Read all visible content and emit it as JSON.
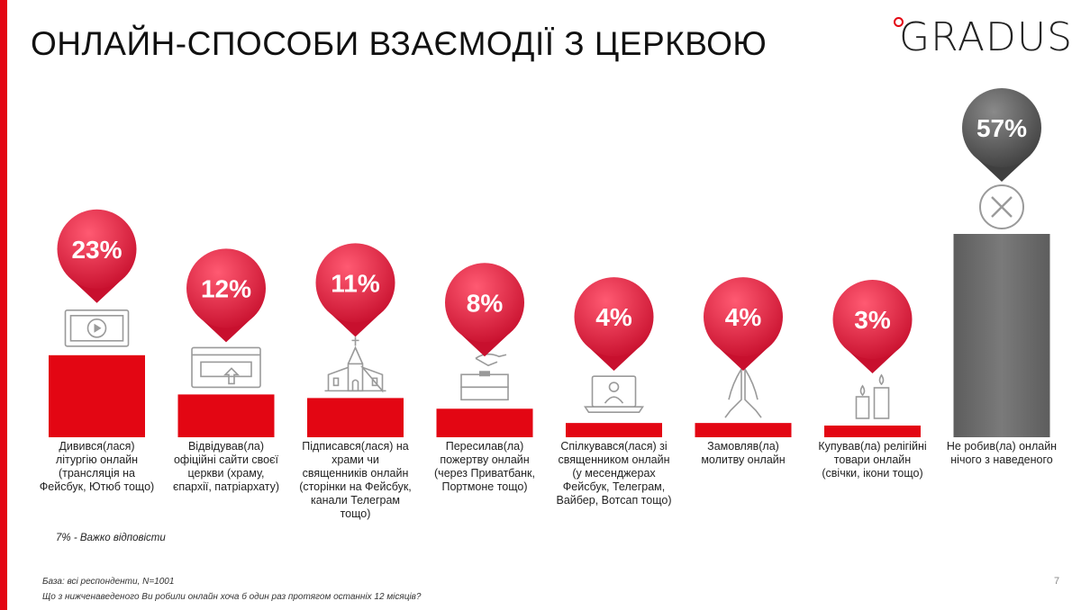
{
  "title": "ОНЛАЙН-СПОСОБИ ВЗАЄМОДІЇ З ЦЕРКВОЮ",
  "logo": "GRADUS",
  "note": "7% - Важко відповісти",
  "footer": {
    "base": "База: всі респонденти, N=1001",
    "question": "Що з нижченаведеного Ви робили онлайн хоча б один раз протягом останніх 12 місяців?"
  },
  "page_number": "7",
  "colors": {
    "accent": "#e30613",
    "gray": "#6d6d6d",
    "bubble_light": "#f0445c",
    "bubble_dark": "#c8102e"
  },
  "chart_data": {
    "type": "bar",
    "ylabel": "",
    "xlabel": "",
    "ylim": [
      0,
      60
    ],
    "categories": [
      "Дивився(лася) літургію онлайн (трансляція на Фейсбук, Ютюб тощо)",
      "Відвідував(ла) офіційні сайти своєї церкви (храму, єпархії, патріархату)",
      "Підписався(лася) на храми чи священників онлайн (сторінки на Фейсбук, канали Телеграм тощо)",
      "Пересилав(ла) пожертву онлайн (через Приватбанк, Портмоне тощо)",
      "Спілкувався(лася) зі священником онлайн (у месенджерах Фейсбук, Телеграм, Вайбер, Вотсап тощо)",
      "Замовляв(ла) молитву онлайн",
      "Купував(ла) релігійні товари онлайн (свічки, ікони тощо)",
      "Не робив(ла) онлайн нічого з наведеного"
    ],
    "category_lines": [
      [
        "Дивився(лася)",
        "літургію онлайн",
        "(трансляція на",
        "Фейсбук, Ютюб тощо)"
      ],
      [
        "Відвідував(ла)",
        "офіційні сайти своєї",
        "церкви (храму,",
        "єпархії, патріархату)"
      ],
      [
        "Підписався(лася) на",
        "храми чи",
        "священників онлайн",
        "(сторінки на Фейсбук,",
        "канали Телеграм",
        "тощо)"
      ],
      [
        "Пересилав(ла)",
        "пожертву онлайн",
        "(через Приватбанк,",
        "Портмоне тощо)"
      ],
      [
        "Спілкувався(лася) зі",
        "священником онлайн",
        "(у месенджерах",
        "Фейсбук, Телеграм,",
        "Вайбер, Вотсап тощо)"
      ],
      [
        "Замовляв(ла)",
        "молитву онлайн"
      ],
      [
        "Купував(ла) релігійні",
        "товари онлайн",
        "(свічки, ікони тощо)"
      ],
      [
        "Не робив(ла) онлайн",
        "нічого з наведеного"
      ]
    ],
    "values": [
      23,
      12,
      11,
      8,
      4,
      4,
      3,
      57
    ],
    "value_labels": [
      "23%",
      "12%",
      "11%",
      "8%",
      "4%",
      "4%",
      "3%",
      "57%"
    ],
    "icons": [
      "video-play-icon",
      "website-upload-icon",
      "church-icon",
      "donation-box-icon",
      "laptop-priest-icon",
      "praying-hands-icon",
      "candles-icon",
      "cross-circle-icon"
    ],
    "highlight_last": true
  }
}
